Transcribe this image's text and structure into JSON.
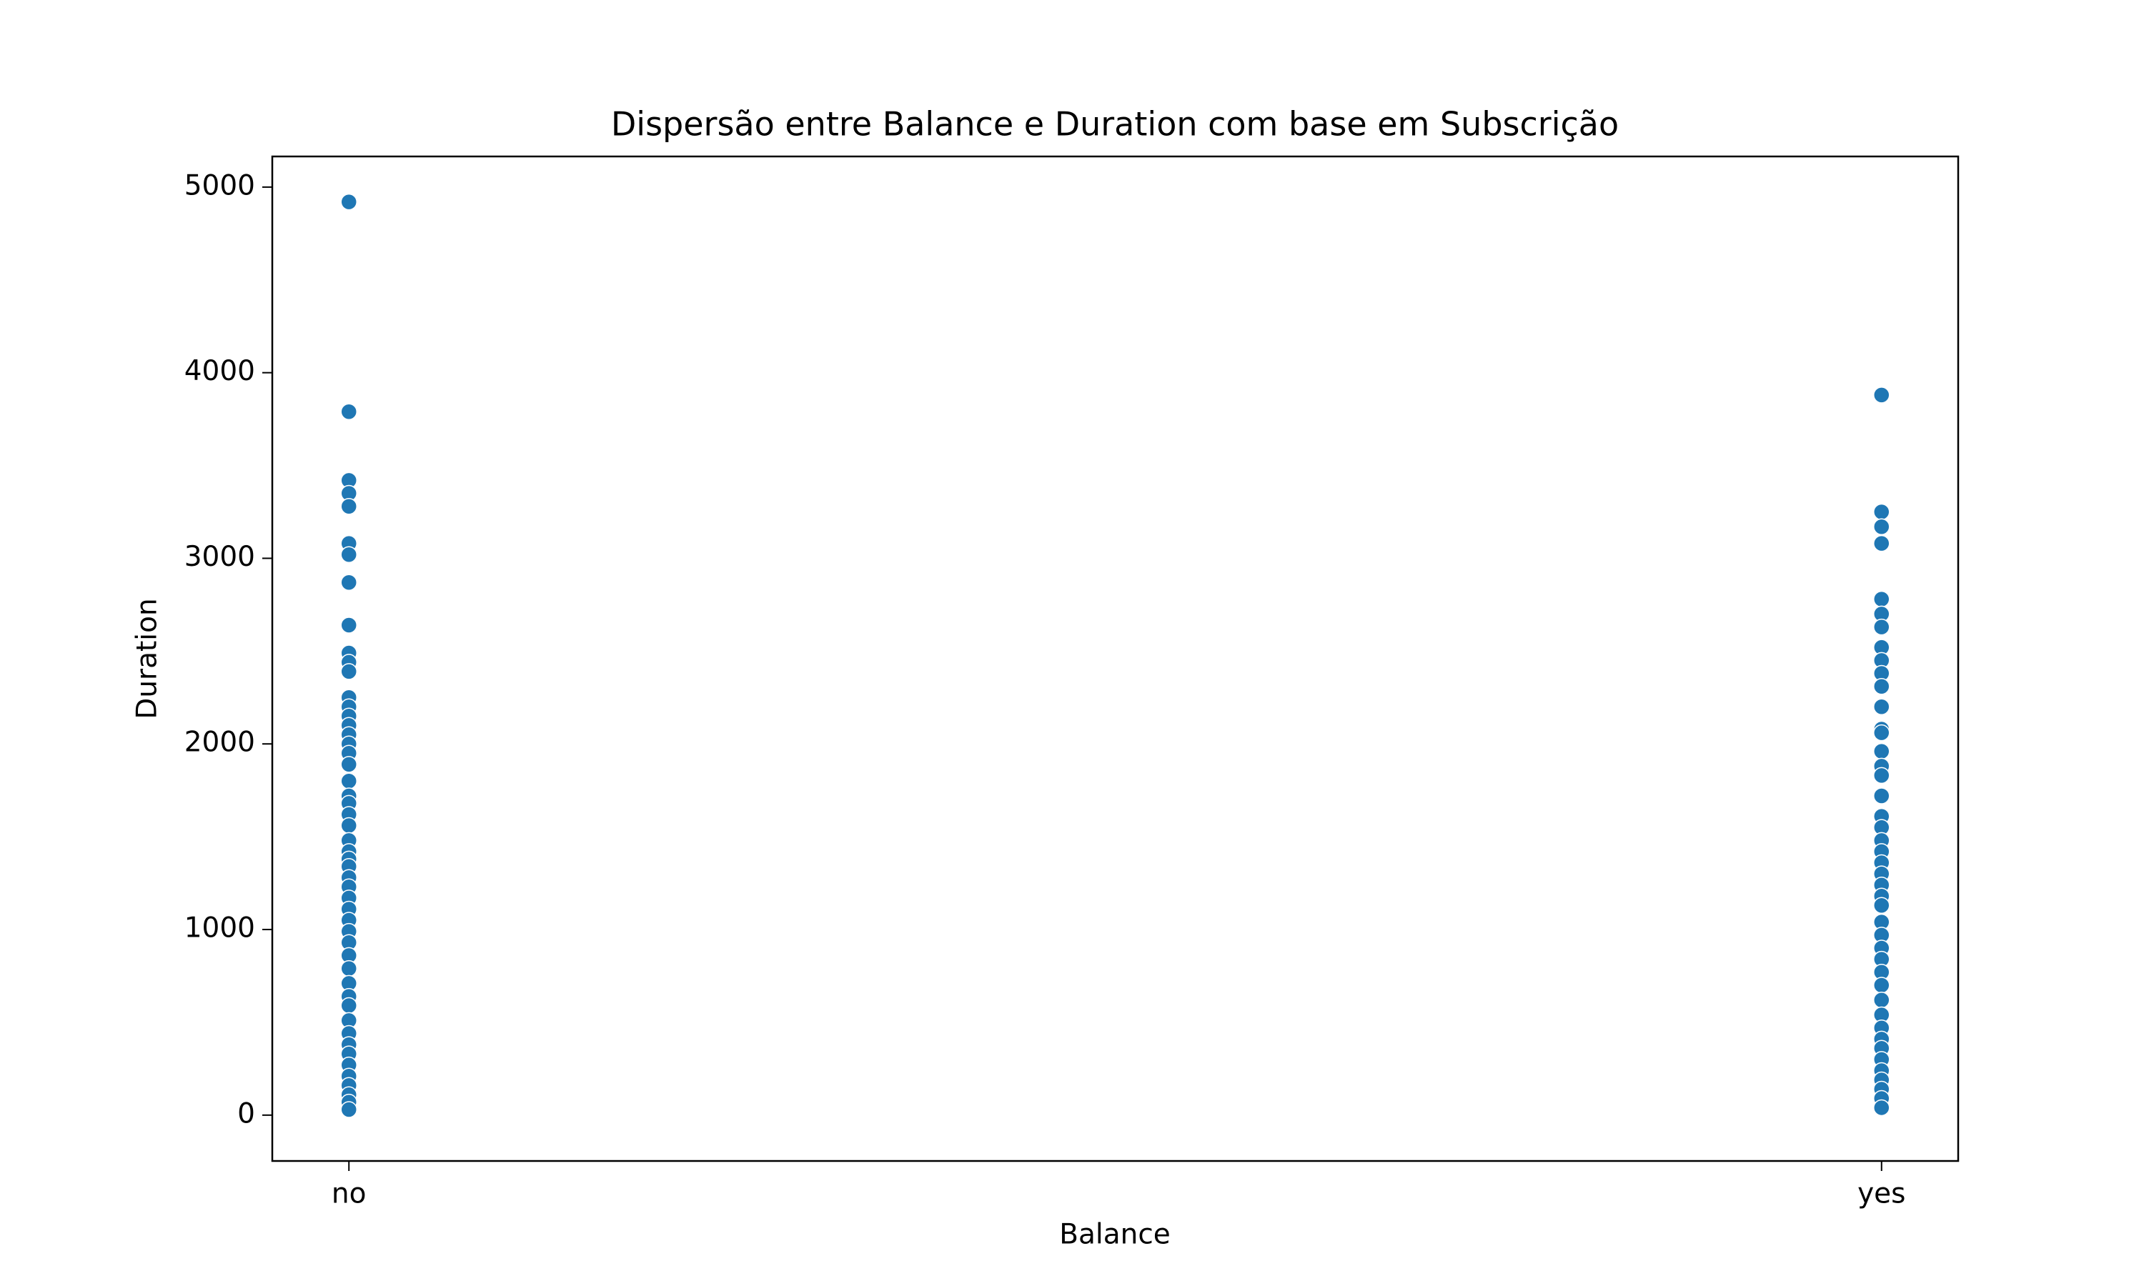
{
  "chart_data": {
    "type": "strip",
    "title": "Dispersão entre Balance e Duration com base em Subscrição",
    "x_label": "Balance",
    "y_label": "Duration",
    "categories": [
      "no",
      "yes"
    ],
    "values": [
      [
        4920,
        3790,
        3420,
        3350,
        3280,
        3080,
        3020,
        2870,
        2640,
        2490,
        2440,
        2390,
        2250,
        2200,
        2150,
        2100,
        2050,
        2000,
        1950,
        1890,
        1800,
        1720,
        1680,
        1620,
        1560,
        1480,
        1420,
        1380,
        1340,
        1280,
        1230,
        1170,
        1110,
        1050,
        990,
        930,
        860,
        790,
        710,
        640,
        590,
        510,
        440,
        380,
        330,
        270,
        210,
        160,
        110,
        70,
        30
      ],
      [
        3880,
        3250,
        3170,
        3080,
        2780,
        2700,
        2630,
        2520,
        2450,
        2380,
        2310,
        2200,
        2080,
        2060,
        1960,
        1880,
        1830,
        1720,
        1610,
        1550,
        1480,
        1420,
        1360,
        1300,
        1240,
        1180,
        1130,
        1040,
        970,
        900,
        840,
        770,
        700,
        620,
        540,
        470,
        410,
        360,
        300,
        240,
        190,
        140,
        90,
        40
      ]
    ],
    "color": "#1f77b4",
    "xlim": [
      -0.05,
      1.05
    ],
    "ylim": [
      -247,
      5165
    ],
    "yticks": [
      0,
      1000,
      2000,
      3000,
      4000,
      5000
    ],
    "grid": false
  }
}
